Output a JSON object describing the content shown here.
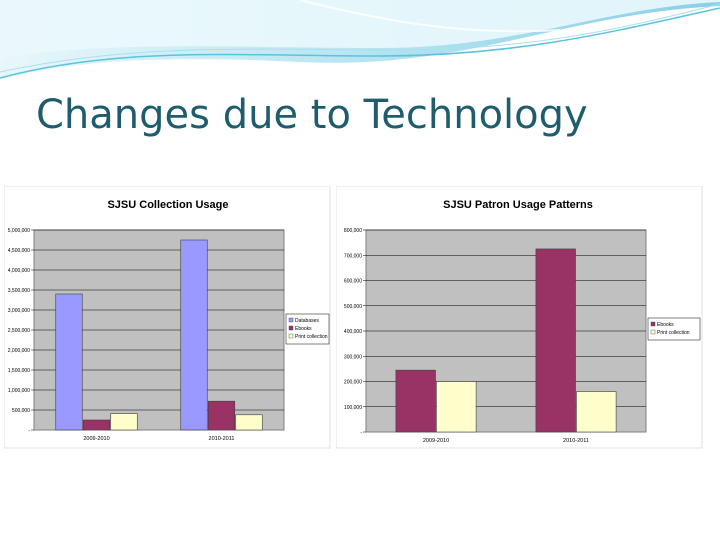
{
  "slide": {
    "title": "Changes due to Technology"
  },
  "chart_data": [
    {
      "type": "bar",
      "title": "SJSU Collection Usage",
      "categories": [
        "2009-2010",
        "2010-2011"
      ],
      "series": [
        {
          "name": "Databases",
          "values": [
            3400000,
            4750000
          ],
          "color": "#9999ff"
        },
        {
          "name": "Ebooks",
          "values": [
            250000,
            720000
          ],
          "color": "#993366"
        },
        {
          "name": "Print collection",
          "values": [
            410000,
            380000
          ],
          "color": "#ffffcc"
        }
      ],
      "ylim": [
        0,
        5000000
      ],
      "yticks": [
        "-",
        "500,000",
        "1,000,000",
        "1,500,000",
        "2,000,000",
        "2,500,000",
        "3,000,000",
        "3,500,000",
        "4,000,000",
        "4,500,000",
        "5,000,000"
      ],
      "grid": true,
      "legend": "right",
      "plot_bg": "#c0c0c0"
    },
    {
      "type": "bar",
      "title": "SJSU Patron Usage Patterns",
      "categories": [
        "2009-2010",
        "2010-2011"
      ],
      "series": [
        {
          "name": "Ebooks",
          "values": [
            245000,
            725000
          ],
          "color": "#993366"
        },
        {
          "name": "Print collection",
          "values": [
            200000,
            160000
          ],
          "color": "#ffffcc"
        }
      ],
      "ylim": [
        0,
        800000
      ],
      "yticks": [
        "-",
        "100,000",
        "200,000",
        "300,000",
        "400,000",
        "500,000",
        "600,000",
        "700,000",
        "800,000"
      ],
      "grid": true,
      "legend": "right",
      "plot_bg": "#c0c0c0"
    }
  ]
}
